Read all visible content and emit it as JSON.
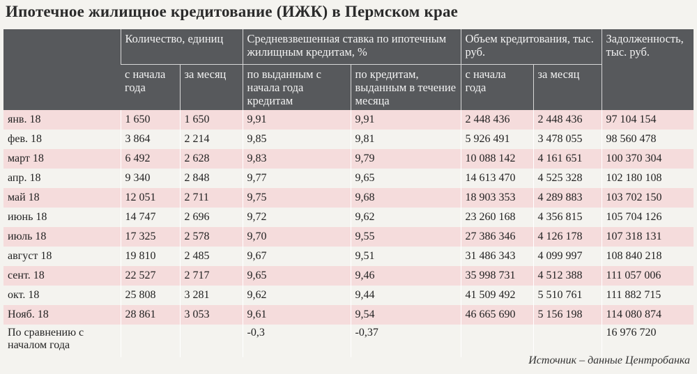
{
  "title": "Ипотечное жилищное кредитование (ИЖК) в Пермском крае",
  "source": "Источник – данные Центробанка",
  "headers": {
    "count": "Количество, единиц",
    "rate": "Средневзвешенная ставка по ипотечным жилищным кредитам, %",
    "volume": "Объем кредитования, тыс. руб.",
    "debt": "Задолженность, тыс. руб.",
    "count_ytd": "с начала года",
    "count_month": "за месяц",
    "rate_ytd": "по выданным с начала года кредитам",
    "rate_month": "по кредитам, выданным в течение месяца",
    "vol_ytd": "с начала года",
    "vol_month": "за месяц"
  },
  "rows": [
    {
      "label": "янв. 18",
      "cnt_ytd": "1 650",
      "cnt_month": "1 650",
      "rate_ytd": "9,91",
      "rate_month": "9,91",
      "vol_ytd": "2 448 436",
      "vol_month": "2 448 436",
      "debt": "97 104 154"
    },
    {
      "label": "фев. 18",
      "cnt_ytd": "3 864",
      "cnt_month": "2 214",
      "rate_ytd": "9,85",
      "rate_month": "9,81",
      "vol_ytd": "5 926 491",
      "vol_month": "3 478 055",
      "debt": "98 560 478"
    },
    {
      "label": "март 18",
      "cnt_ytd": "6 492",
      "cnt_month": "2 628",
      "rate_ytd": "9,83",
      "rate_month": "9,79",
      "vol_ytd": "10 088 142",
      "vol_month": "4 161 651",
      "debt": "100 370 304"
    },
    {
      "label": "апр. 18",
      "cnt_ytd": "9 340",
      "cnt_month": "2 848",
      "rate_ytd": "9,77",
      "rate_month": "9,65",
      "vol_ytd": "14 613 470",
      "vol_month": "4 525 328",
      "debt": "102 180 108"
    },
    {
      "label": "май 18",
      "cnt_ytd": "12 051",
      "cnt_month": "2 711",
      "rate_ytd": "9,75",
      "rate_month": "9,68",
      "vol_ytd": "18 903 353",
      "vol_month": "4 289 883",
      "debt": "103 702 150"
    },
    {
      "label": "июнь 18",
      "cnt_ytd": "14 747",
      "cnt_month": "2 696",
      "rate_ytd": "9,72",
      "rate_month": "9,62",
      "vol_ytd": "23 260 168",
      "vol_month": "4 356 815",
      "debt": "105 704 126"
    },
    {
      "label": "июль 18",
      "cnt_ytd": "17 325",
      "cnt_month": "2 578",
      "rate_ytd": "9,70",
      "rate_month": "9,55",
      "vol_ytd": "27 386 346",
      "vol_month": "4 126 178",
      "debt": "107 318 131"
    },
    {
      "label": "август 18",
      "cnt_ytd": "19 810",
      "cnt_month": "2 485",
      "rate_ytd": "9,67",
      "rate_month": "9,51",
      "vol_ytd": "31 486 343",
      "vol_month": "4 099 997",
      "debt": "108 840 218"
    },
    {
      "label": "сент. 18",
      "cnt_ytd": "22 527",
      "cnt_month": "2 717",
      "rate_ytd": "9,65",
      "rate_month": "9,46",
      "vol_ytd": "35 998 731",
      "vol_month": "4 512 388",
      "debt": "111 057 006"
    },
    {
      "label": "окт. 18",
      "cnt_ytd": "25 808",
      "cnt_month": "3 281",
      "rate_ytd": "9,62",
      "rate_month": "9,44",
      "vol_ytd": "41 509 492",
      "vol_month": "5 510 761",
      "debt": "111 882 715"
    },
    {
      "label": "Нояб. 18",
      "cnt_ytd": "28 861",
      "cnt_month": "3 053",
      "rate_ytd": "9,61",
      "rate_month": "9,54",
      "vol_ytd": "46 665 690",
      "vol_month": "5 156 198",
      "debt": "114 080 874"
    },
    {
      "label": "По сравнению с началом года",
      "cnt_ytd": "",
      "cnt_month": "",
      "rate_ytd": "-0,3",
      "rate_month": "-0,37",
      "vol_ytd": "",
      "vol_month": "",
      "debt": "16 976 720"
    }
  ],
  "chart_data": {
    "type": "table",
    "title": "Ипотечное жилищное кредитование (ИЖК) в Пермском крае",
    "columns": [
      "",
      "Количество, единиц — с начала года",
      "Количество, единиц — за месяц",
      "Средневзвешенная ставка — по выданным с начала года кредитам",
      "Средневзвешенная ставка — по кредитам, выданным в течение месяца",
      "Объем кредитования — с начала года",
      "Объем кредитования — за месяц",
      "Задолженность, тыс. руб."
    ],
    "rows": [
      [
        "янв. 18",
        1650,
        1650,
        9.91,
        9.91,
        2448436,
        2448436,
        97104154
      ],
      [
        "фев. 18",
        3864,
        2214,
        9.85,
        9.81,
        5926491,
        3478055,
        98560478
      ],
      [
        "март 18",
        6492,
        2628,
        9.83,
        9.79,
        10088142,
        4161651,
        100370304
      ],
      [
        "апр. 18",
        9340,
        2848,
        9.77,
        9.65,
        14613470,
        4525328,
        102180108
      ],
      [
        "май 18",
        12051,
        2711,
        9.75,
        9.68,
        18903353,
        4289883,
        103702150
      ],
      [
        "июнь 18",
        14747,
        2696,
        9.72,
        9.62,
        23260168,
        4356815,
        105704126
      ],
      [
        "июль 18",
        17325,
        2578,
        9.7,
        9.55,
        27386346,
        4126178,
        107318131
      ],
      [
        "август 18",
        19810,
        2485,
        9.67,
        9.51,
        31486343,
        4099997,
        108840218
      ],
      [
        "сент. 18",
        22527,
        2717,
        9.65,
        9.46,
        35998731,
        4512388,
        111057006
      ],
      [
        "окт. 18",
        25808,
        3281,
        9.62,
        9.44,
        41509492,
        5510761,
        111882715
      ],
      [
        "Нояб. 18",
        28861,
        3053,
        9.61,
        9.54,
        46665690,
        5156198,
        114080874
      ],
      [
        "По сравнению с началом года",
        null,
        null,
        -0.3,
        -0.37,
        null,
        null,
        16976720
      ]
    ]
  }
}
